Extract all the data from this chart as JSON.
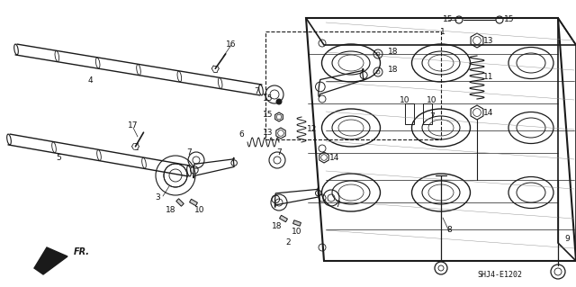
{
  "background_color": "#ffffff",
  "diagram_code": "SHJ4-E1202",
  "figsize": [
    6.4,
    3.19
  ],
  "dpi": 100,
  "line_color": "#1a1a1a",
  "label_fontsize": 6.5,
  "label_color": "#111111"
}
